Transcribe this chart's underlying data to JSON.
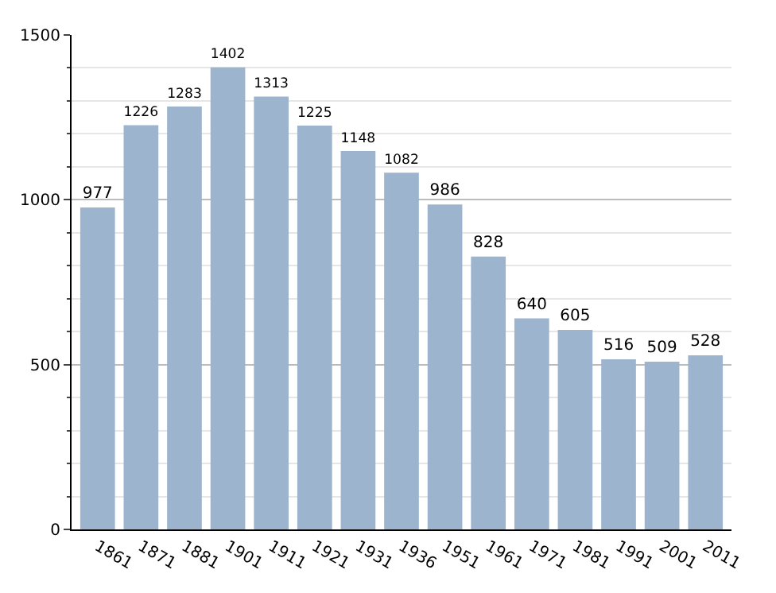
{
  "chart_data": {
    "type": "bar",
    "categories": [
      "1861",
      "1871",
      "1881",
      "1901",
      "1911",
      "1921",
      "1931",
      "1936",
      "1951",
      "1961",
      "1971",
      "1981",
      "1991",
      "2001",
      "2011"
    ],
    "values": [
      977,
      1226,
      1283,
      1402,
      1313,
      1225,
      1148,
      1082,
      986,
      828,
      640,
      605,
      516,
      509,
      528
    ],
    "color": "#9db4cf",
    "ylim": [
      0,
      1500
    ],
    "yticks": [
      0,
      500,
      1000,
      1500
    ],
    "grid": "y",
    "data_labels": true
  }
}
